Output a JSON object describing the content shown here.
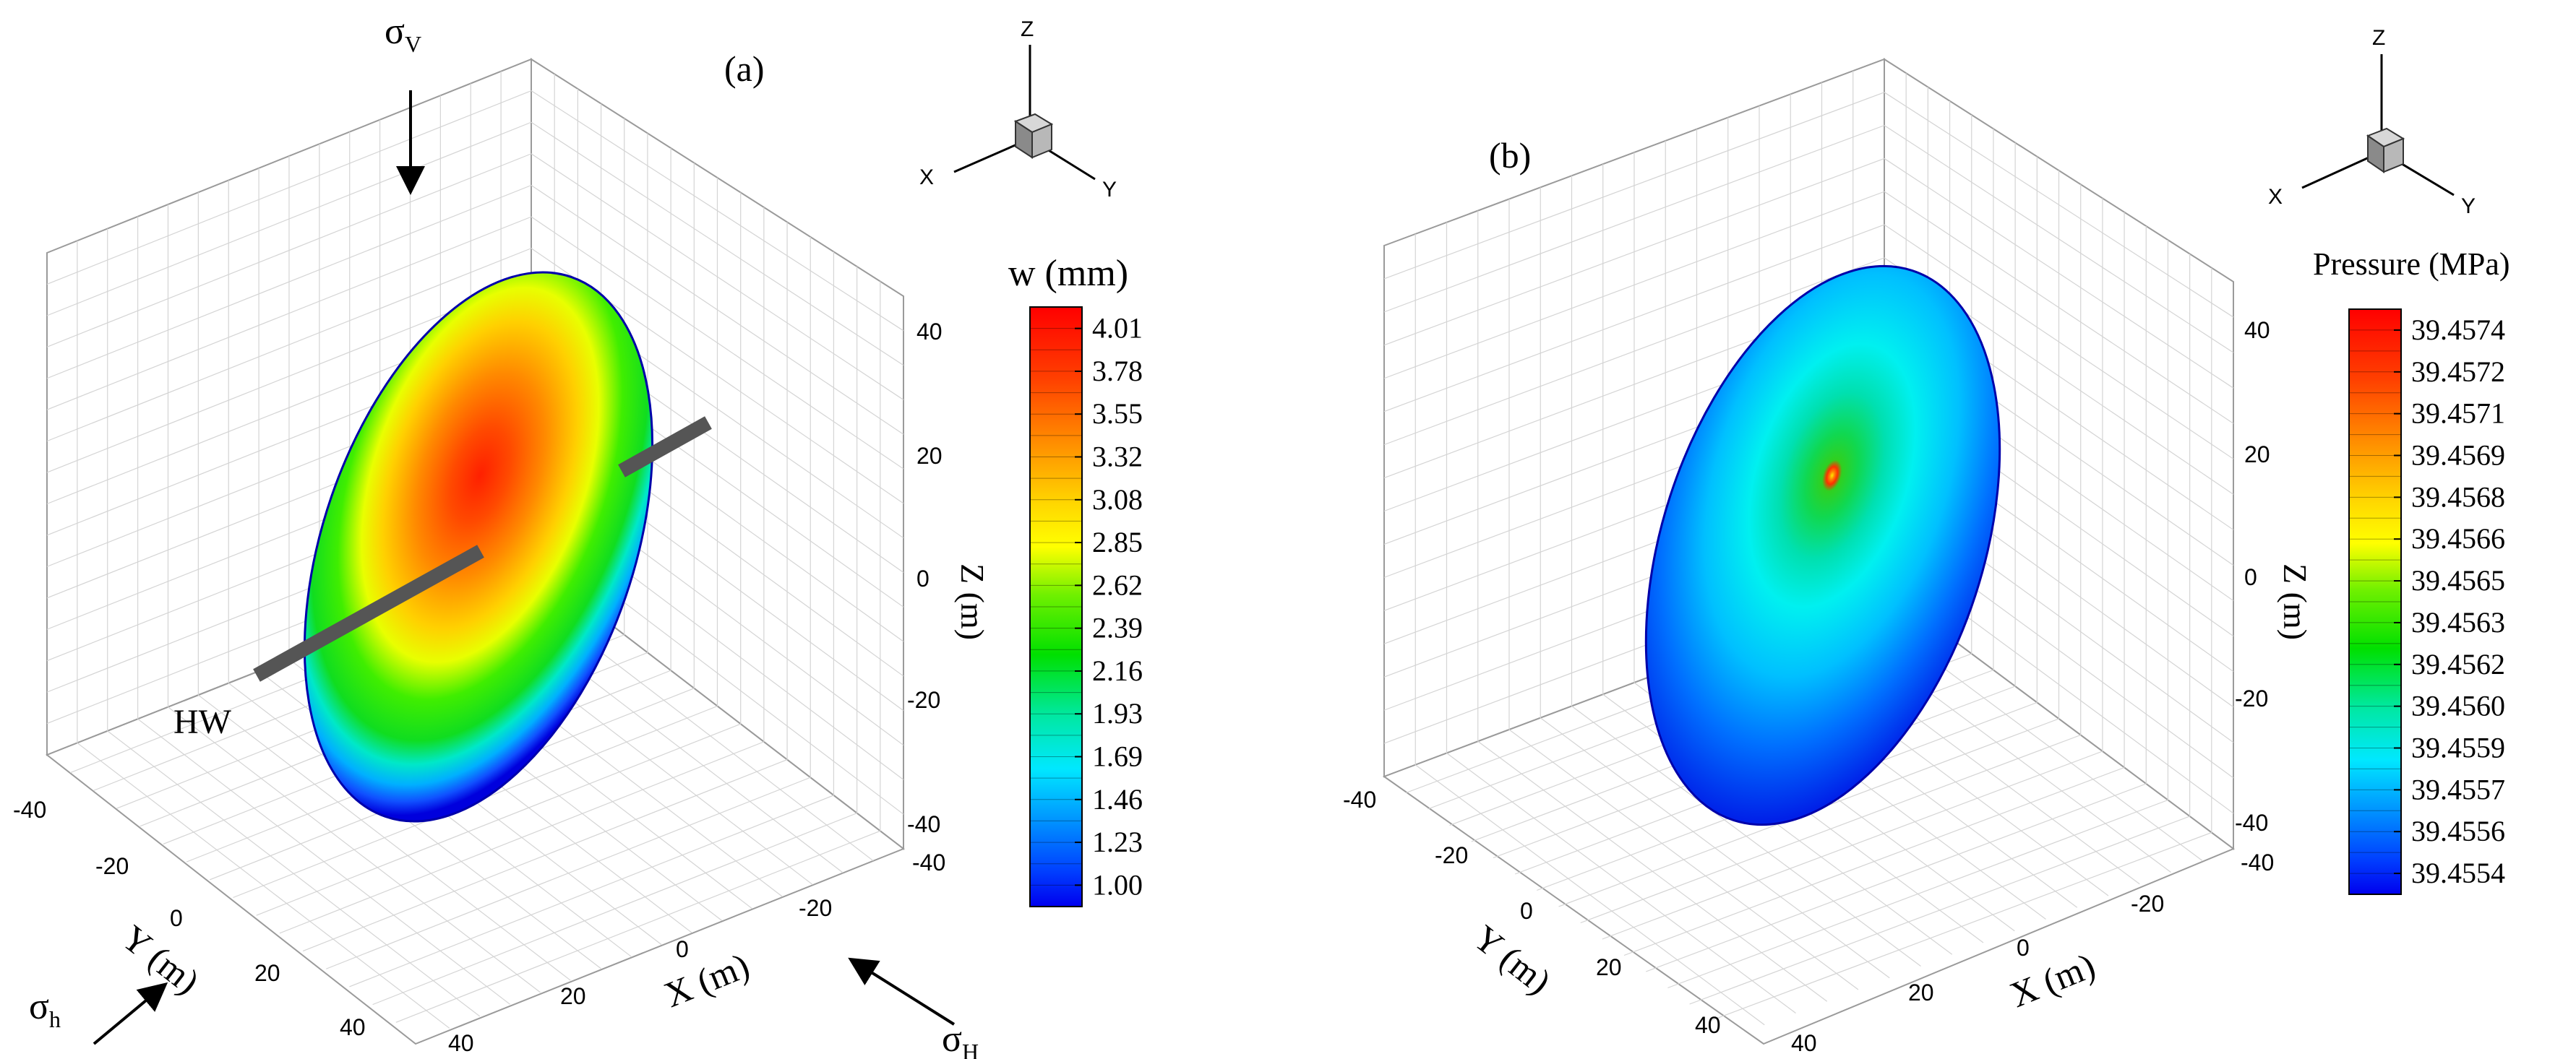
{
  "chart_data": [
    {
      "panel_label": "(a)",
      "type": "heatmap",
      "description_variable": "w (mm)",
      "colorbar": {
        "title": "w (mm)",
        "ticks": [
          "4.01",
          "3.78",
          "3.55",
          "3.32",
          "3.08",
          "2.85",
          "2.62",
          "2.39",
          "2.16",
          "1.93",
          "1.69",
          "1.46",
          "1.23",
          "1.00"
        ],
        "min": 1.0,
        "max": 4.01
      },
      "axes": {
        "xlabel": "X (m)",
        "ylabel": "Y (m)",
        "zlabel": "Z (m)",
        "x_ticks": [
          "-40",
          "-20",
          "0",
          "20",
          "40"
        ],
        "y_ticks": [
          "-40",
          "-20",
          "0",
          "20",
          "40"
        ],
        "z_ticks": [
          "40",
          "20",
          "0",
          "-20",
          "-40"
        ],
        "xlim": [
          -40,
          40
        ],
        "ylim": [
          -40,
          40
        ],
        "zlim": [
          -40,
          40
        ]
      },
      "annotations": {
        "sigma_v_base": "σ",
        "sigma_v_sub": "V",
        "sigma_h_base": "σ",
        "sigma_h_sub": "h",
        "sigma_H_base": "σ",
        "sigma_H_sub": "H",
        "well": "HW"
      },
      "orientation_triad": {
        "x": "X",
        "y": "Y",
        "z": "Z"
      }
    },
    {
      "panel_label": "(b)",
      "type": "heatmap",
      "description_variable": "Pressure (MPa)",
      "colorbar": {
        "title": "Pressure (MPa)",
        "ticks": [
          "39.4574",
          "39.4572",
          "39.4571",
          "39.4569",
          "39.4568",
          "39.4566",
          "39.4565",
          "39.4563",
          "39.4562",
          "39.4560",
          "39.4559",
          "39.4557",
          "39.4556",
          "39.4554"
        ],
        "min": 39.4554,
        "max": 39.4574
      },
      "axes": {
        "xlabel": "X (m)",
        "ylabel": "Y (m)",
        "zlabel": "Z (m)",
        "x_ticks": [
          "-40",
          "-20",
          "0",
          "20",
          "40"
        ],
        "y_ticks": [
          "-40",
          "-20",
          "0",
          "20",
          "40"
        ],
        "z_ticks": [
          "40",
          "20",
          "0",
          "-20",
          "-40"
        ],
        "xlim": [
          -40,
          40
        ],
        "ylim": [
          -40,
          40
        ],
        "zlim": [
          -40,
          40
        ]
      },
      "orientation_triad": {
        "x": "X",
        "y": "Y",
        "z": "Z"
      }
    }
  ]
}
